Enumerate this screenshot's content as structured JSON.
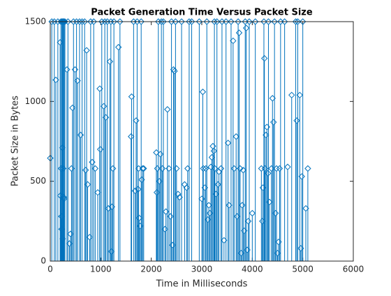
{
  "chart_data": {
    "type": "stem",
    "title": "Packet Generation Time Versus Packet Size",
    "x_label": "Time in Milliseconds",
    "y_label": "Packet Size in Bytes",
    "color": "#0072bd",
    "xlim": [
      0,
      6000
    ],
    "xticks": [
      0,
      1000,
      2000,
      3000,
      4000,
      5000,
      6000
    ],
    "ylim": [
      0,
      1500
    ],
    "yticks": [
      0,
      500,
      1000,
      1500
    ],
    "x": [
      0,
      30,
      80,
      110,
      150,
      195,
      200,
      210,
      215,
      220,
      225,
      230,
      235,
      240,
      245,
      250,
      255,
      260,
      265,
      270,
      275,
      290,
      330,
      350,
      380,
      400,
      420,
      440,
      460,
      490,
      520,
      540,
      580,
      600,
      630,
      680,
      700,
      720,
      740,
      780,
      800,
      830,
      860,
      890,
      940,
      980,
      990,
      1020,
      1060,
      1080,
      1100,
      1130,
      1150,
      1180,
      1200,
      1210,
      1220,
      1240,
      1260,
      1350,
      1380,
      1600,
      1610,
      1650,
      1680,
      1700,
      1720,
      1740,
      1750,
      1760,
      1780,
      1800,
      1810,
      1830,
      1850,
      2100,
      2110,
      2120,
      2140,
      2160,
      2180,
      2200,
      2220,
      2240,
      2270,
      2290,
      2320,
      2350,
      2380,
      2400,
      2420,
      2440,
      2460,
      2480,
      2500,
      2530,
      2560,
      2600,
      2660,
      2700,
      2720,
      2750,
      2800,
      2950,
      3000,
      3020,
      3030,
      3060,
      3080,
      3100,
      3120,
      3140,
      3160,
      3180,
      3200,
      3220,
      3240,
      3250,
      3260,
      3280,
      3300,
      3320,
      3340,
      3380,
      3400,
      3440,
      3480,
      3520,
      3540,
      3580,
      3620,
      3640,
      3680,
      3700,
      3720,
      3740,
      3760,
      3780,
      3800,
      3820,
      3840,
      3860,
      3880,
      3900,
      3920,
      3940,
      4000,
      4060,
      4180,
      4200,
      4210,
      4230,
      4240,
      4250,
      4270,
      4290,
      4310,
      4320,
      4340,
      4380,
      4400,
      4420,
      4440,
      4460,
      4480,
      4500,
      4520,
      4540,
      4560,
      4640,
      4700,
      4780,
      4860,
      4880,
      4900,
      4940,
      4960,
      4980,
      5000,
      5060,
      5100
    ],
    "values": [
      645,
      1500,
      1500,
      1135,
      1500,
      1370,
      410,
      1500,
      580,
      280,
      200,
      1500,
      1500,
      710,
      140,
      1500,
      580,
      1500,
      400,
      390,
      1500,
      1500,
      1200,
      1500,
      110,
      170,
      580,
      960,
      1500,
      1200,
      1500,
      1130,
      1500,
      790,
      1500,
      1500,
      570,
      1320,
      480,
      150,
      1500,
      620,
      1500,
      580,
      430,
      1080,
      700,
      1500,
      970,
      1500,
      900,
      1500,
      330,
      1250,
      1500,
      60,
      340,
      580,
      1500,
      1340,
      1500,
      780,
      1030,
      1500,
      440,
      880,
      1500,
      450,
      580,
      270,
      220,
      1500,
      510,
      580,
      580,
      680,
      430,
      580,
      1500,
      500,
      670,
      1500,
      580,
      1500,
      200,
      310,
      950,
      580,
      280,
      1500,
      100,
      1200,
      1190,
      1500,
      580,
      420,
      400,
      1500,
      480,
      460,
      580,
      1500,
      1500,
      1500,
      390,
      1060,
      580,
      460,
      580,
      1500,
      260,
      350,
      300,
      590,
      650,
      720,
      690,
      1500,
      580,
      420,
      1500,
      480,
      560,
      580,
      1500,
      130,
      1500,
      740,
      350,
      1500,
      1380,
      580,
      780,
      280,
      1500,
      1430,
      580,
      50,
      350,
      570,
      190,
      1500,
      1460,
      70,
      250,
      1500,
      300,
      1500,
      580,
      250,
      460,
      1500,
      1270,
      580,
      790,
      840,
      550,
      1500,
      370,
      580,
      1020,
      870,
      1500,
      300,
      580,
      50,
      120,
      580,
      1500,
      1500,
      590,
      1040,
      1500,
      880,
      1500,
      1040,
      80,
      530,
      1500,
      330,
      580
    ]
  }
}
